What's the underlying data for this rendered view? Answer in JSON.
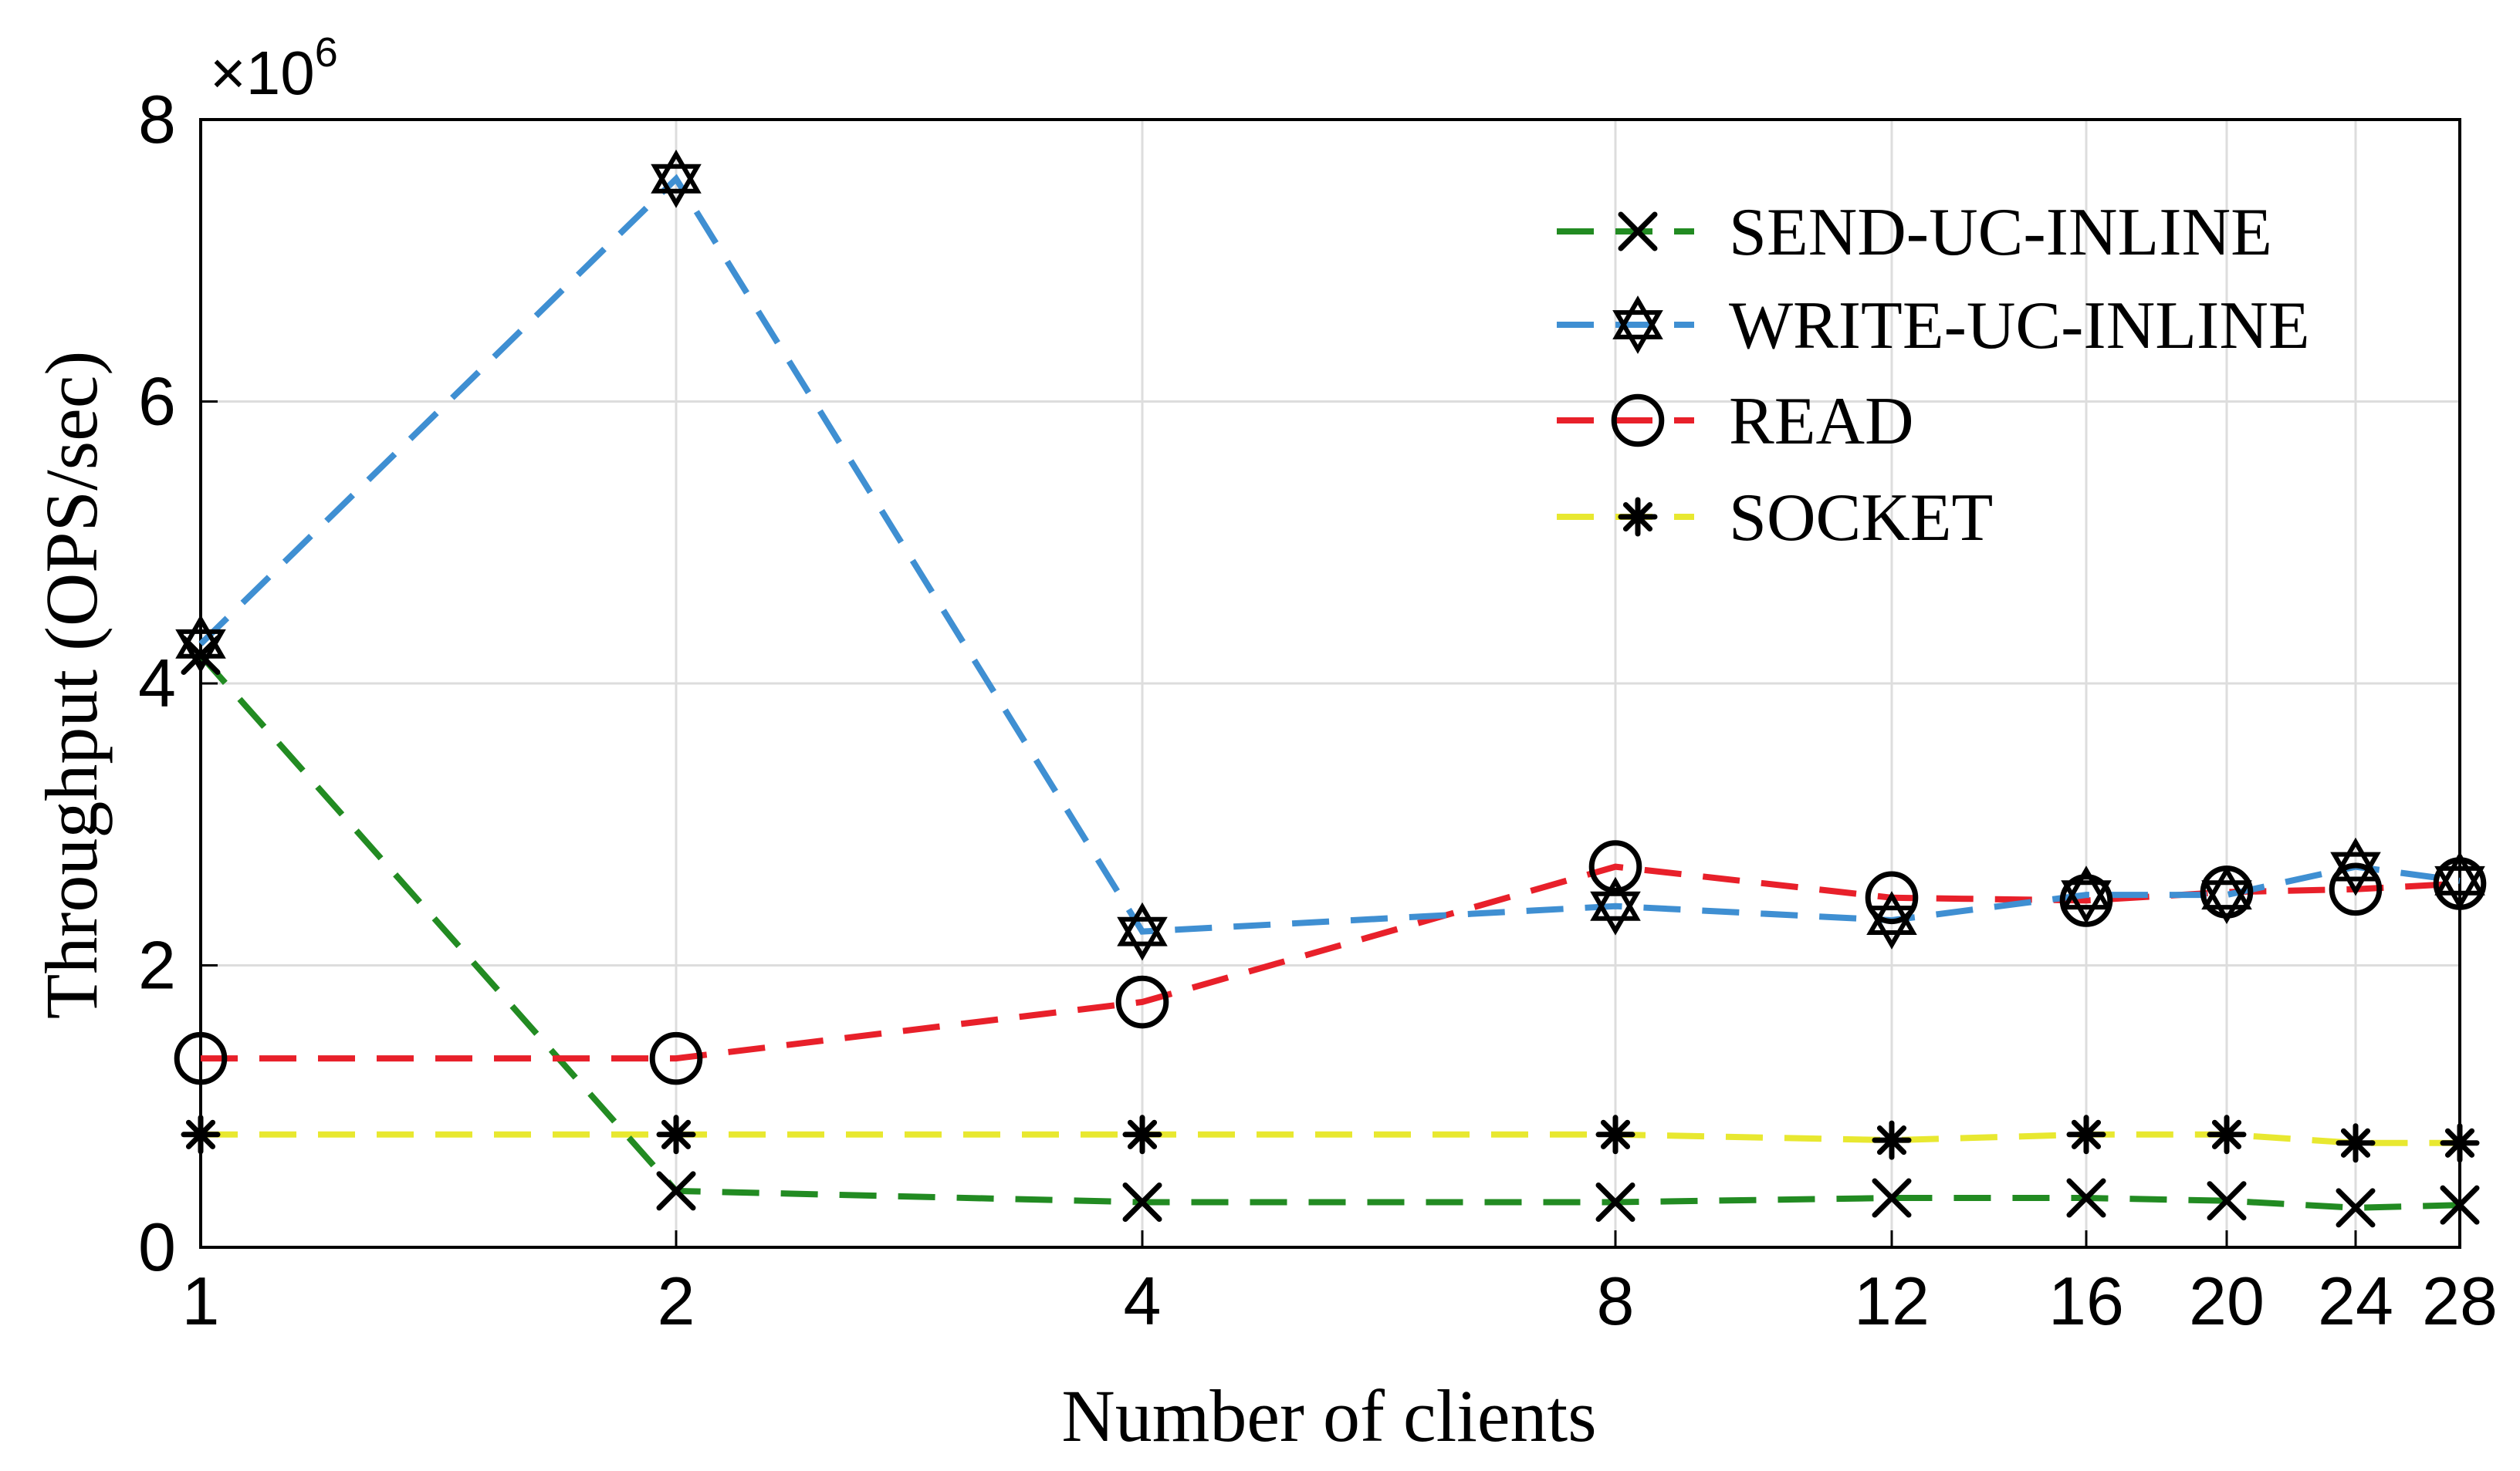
{
  "chart_data": {
    "type": "line",
    "xlabel": "Number of clients",
    "ylabel": "Throughput (OPS/sec)",
    "y_multiplier_base": "×10",
    "y_multiplier_exp": "6",
    "x": [
      1,
      2,
      4,
      8,
      12,
      16,
      20,
      24,
      28
    ],
    "x_tick_labels": [
      "1",
      "2",
      "4",
      "8",
      "12",
      "16",
      "20",
      "24",
      "28"
    ],
    "y_ticks": [
      0,
      2,
      4,
      6,
      8
    ],
    "y_tick_labels": [
      "0",
      "2",
      "4",
      "6",
      "8"
    ],
    "ylim": [
      0,
      8
    ],
    "grid": true,
    "legend_position": "top-right",
    "series": [
      {
        "name": "SEND-UC-INLINE",
        "color": "#228B22",
        "marker": "x",
        "values": [
          4.2,
          0.4,
          0.32,
          0.32,
          0.35,
          0.35,
          0.33,
          0.28,
          0.3
        ]
      },
      {
        "name": "WRITE-UC-INLINE",
        "color": "#3F8FD2",
        "marker": "hexagram",
        "values": [
          4.28,
          7.58,
          2.24,
          2.42,
          2.32,
          2.5,
          2.5,
          2.7,
          2.6
        ]
      },
      {
        "name": "READ",
        "color": "#E8202A",
        "marker": "circle",
        "values": [
          1.34,
          1.34,
          1.74,
          2.7,
          2.48,
          2.46,
          2.52,
          2.54,
          2.58
        ]
      },
      {
        "name": "SOCKET",
        "color": "#E8E830",
        "marker": "asterisk",
        "values": [
          0.8,
          0.8,
          0.8,
          0.8,
          0.76,
          0.8,
          0.8,
          0.74,
          0.74
        ]
      }
    ]
  }
}
